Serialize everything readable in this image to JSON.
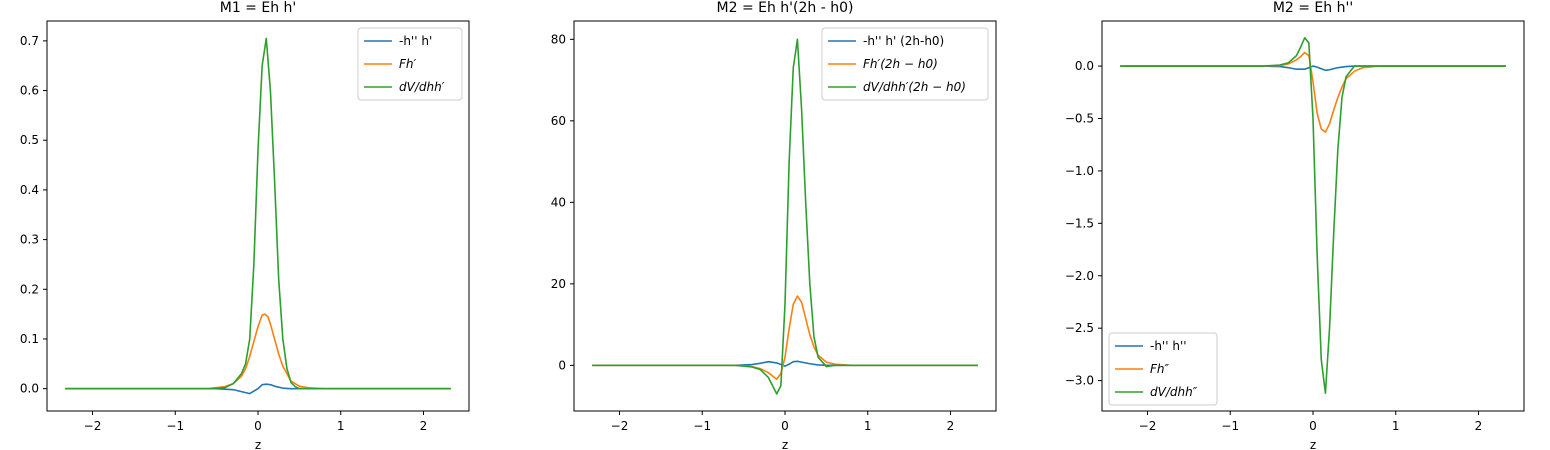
{
  "colors": {
    "blue": "#1f77b4",
    "orange": "#ff7f0e",
    "green": "#2ca02c"
  },
  "chart_data": [
    {
      "type": "line",
      "title": "M1 = Eh h'",
      "xlabel": "z",
      "ylabel": "",
      "xlim": [
        -2.55,
        2.55
      ],
      "ylim": [
        -0.045,
        0.74
      ],
      "xticks": [
        -2,
        -1,
        0,
        1,
        2
      ],
      "yticks": [
        0.0,
        0.1,
        0.2,
        0.3,
        0.4,
        0.5,
        0.6,
        0.7
      ],
      "ytick_labels": [
        "0.0",
        "0.1",
        "0.2",
        "0.3",
        "0.4",
        "0.5",
        "0.6",
        "0.7"
      ],
      "legend_position": "top-right",
      "series": [
        {
          "name": "-h'' h'",
          "color": "blue",
          "x": [
            -2.33,
            -1.0,
            -0.5,
            -0.3,
            -0.2,
            -0.1,
            0.0,
            0.05,
            0.1,
            0.15,
            0.2,
            0.3,
            0.4,
            0.6,
            1.0,
            2.33
          ],
          "y": [
            0,
            0,
            0,
            -0.002,
            -0.006,
            -0.01,
            0.0,
            0.008,
            0.009,
            0.008,
            0.005,
            0.001,
            0.0,
            0,
            0,
            0
          ]
        },
        {
          "name": "Fh′",
          "color": "orange",
          "x": [
            -2.33,
            -0.6,
            -0.4,
            -0.3,
            -0.2,
            -0.15,
            -0.1,
            -0.05,
            0.0,
            0.05,
            0.08,
            0.12,
            0.15,
            0.2,
            0.25,
            0.3,
            0.4,
            0.5,
            0.6,
            0.8,
            1.0,
            2.33
          ],
          "y": [
            0,
            0,
            0.004,
            0.01,
            0.025,
            0.04,
            0.065,
            0.095,
            0.125,
            0.148,
            0.15,
            0.145,
            0.13,
            0.1,
            0.07,
            0.045,
            0.015,
            0.005,
            0.002,
            0,
            0,
            0
          ]
        },
        {
          "name": "dV/dhh′",
          "color": "green",
          "x": [
            -2.33,
            -0.6,
            -0.4,
            -0.3,
            -0.2,
            -0.15,
            -0.1,
            -0.05,
            0.0,
            0.05,
            0.1,
            0.15,
            0.2,
            0.25,
            0.3,
            0.35,
            0.4,
            0.45,
            0.5,
            0.6,
            1.0,
            2.33
          ],
          "y": [
            0,
            0,
            0.002,
            0.01,
            0.03,
            0.05,
            0.1,
            0.25,
            0.48,
            0.65,
            0.705,
            0.6,
            0.42,
            0.22,
            0.1,
            0.04,
            0.012,
            0.004,
            0.0,
            0,
            0,
            0
          ]
        }
      ]
    },
    {
      "type": "line",
      "title": "M2 = Eh h'(2h - h0)",
      "xlabel": "z",
      "ylabel": "",
      "xlim": [
        -2.55,
        2.55
      ],
      "ylim": [
        -11.2,
        84.5
      ],
      "xticks": [
        -2,
        -1,
        0,
        1,
        2
      ],
      "yticks": [
        0,
        20,
        40,
        60,
        80
      ],
      "ytick_labels": [
        "0",
        "20",
        "40",
        "60",
        "80"
      ],
      "legend_position": "top-right",
      "series": [
        {
          "name": "-h'' h' (2h-h0)",
          "color": "blue",
          "x": [
            -2.33,
            -0.6,
            -0.4,
            -0.3,
            -0.2,
            -0.1,
            0.0,
            0.05,
            0.1,
            0.15,
            0.2,
            0.3,
            0.4,
            0.5,
            0.6,
            0.8,
            2.33
          ],
          "y": [
            0,
            0,
            0.2,
            0.5,
            0.9,
            0.6,
            -0.2,
            0.3,
            0.9,
            1.0,
            0.8,
            0.4,
            0.1,
            0.0,
            0,
            0,
            0
          ]
        },
        {
          "name": "Fh′(2h − h0)",
          "color": "orange",
          "x": [
            -2.33,
            -0.6,
            -0.4,
            -0.3,
            -0.2,
            -0.15,
            -0.1,
            -0.05,
            0.0,
            0.05,
            0.1,
            0.15,
            0.2,
            0.25,
            0.3,
            0.35,
            0.4,
            0.5,
            0.6,
            0.8,
            1.0,
            2.33
          ],
          "y": [
            0,
            0,
            -0.3,
            -0.8,
            -1.8,
            -2.6,
            -3.4,
            -2.0,
            2.0,
            9.0,
            15.0,
            17.0,
            15.5,
            11.5,
            7.5,
            4.5,
            2.5,
            0.8,
            0.3,
            0,
            0,
            0
          ]
        },
        {
          "name": "dV/dhh′(2h − h0)",
          "color": "green",
          "x": [
            -2.33,
            -0.6,
            -0.4,
            -0.3,
            -0.2,
            -0.15,
            -0.1,
            -0.05,
            0.0,
            0.05,
            0.1,
            0.15,
            0.2,
            0.25,
            0.3,
            0.35,
            0.4,
            0.5,
            0.6,
            1.0,
            2.33
          ],
          "y": [
            0,
            0,
            -0.4,
            -1.0,
            -3.0,
            -5.0,
            -7.0,
            -5.0,
            15.0,
            50.0,
            73.0,
            80.0,
            63.0,
            40.0,
            20.0,
            7.0,
            2.0,
            -0.3,
            0,
            0,
            0
          ]
        }
      ]
    },
    {
      "type": "line",
      "title": "M2 = Eh h''",
      "xlabel": "z",
      "ylabel": "",
      "xlim": [
        -2.55,
        2.55
      ],
      "ylim": [
        -3.29,
        0.43
      ],
      "xticks": [
        -2,
        -1,
        0,
        1,
        2
      ],
      "yticks": [
        0.0,
        -0.5,
        -1.0,
        -1.5,
        -2.0,
        -2.5,
        -3.0
      ],
      "ytick_labels": [
        "0.0",
        "−0.5",
        "−1.0",
        "−1.5",
        "−2.0",
        "−2.5",
        "−3.0"
      ],
      "legend_position": "lower-left",
      "series": [
        {
          "name": "-h'' h''",
          "color": "blue",
          "x": [
            -2.33,
            -0.6,
            -0.4,
            -0.3,
            -0.2,
            -0.1,
            0.0,
            0.05,
            0.1,
            0.15,
            0.2,
            0.3,
            0.4,
            0.5,
            0.6,
            0.8,
            2.33
          ],
          "y": [
            0,
            0,
            -0.005,
            -0.015,
            -0.03,
            -0.03,
            0.0,
            -0.01,
            -0.025,
            -0.04,
            -0.035,
            -0.015,
            -0.005,
            0.0,
            0,
            0,
            0
          ]
        },
        {
          "name": "Fh″",
          "color": "orange",
          "x": [
            -2.33,
            -0.6,
            -0.4,
            -0.3,
            -0.2,
            -0.15,
            -0.1,
            -0.05,
            0.0,
            0.05,
            0.1,
            0.15,
            0.2,
            0.25,
            0.3,
            0.35,
            0.4,
            0.5,
            0.6,
            0.8,
            1.0,
            2.33
          ],
          "y": [
            0,
            0,
            0.005,
            0.02,
            0.06,
            0.09,
            0.13,
            0.1,
            -0.15,
            -0.45,
            -0.6,
            -0.63,
            -0.55,
            -0.42,
            -0.3,
            -0.2,
            -0.12,
            -0.05,
            -0.015,
            0,
            0,
            0
          ]
        },
        {
          "name": "dV/dhh″",
          "color": "green",
          "x": [
            -2.33,
            -0.6,
            -0.4,
            -0.3,
            -0.2,
            -0.15,
            -0.1,
            -0.05,
            0.0,
            0.05,
            0.1,
            0.15,
            0.2,
            0.25,
            0.3,
            0.35,
            0.4,
            0.5,
            0.6,
            1.0,
            2.33
          ],
          "y": [
            0,
            0,
            0.01,
            0.03,
            0.1,
            0.18,
            0.27,
            0.22,
            -0.5,
            -1.8,
            -2.8,
            -3.12,
            -2.5,
            -1.6,
            -0.8,
            -0.3,
            -0.1,
            0.0,
            0,
            0,
            0
          ]
        }
      ]
    }
  ]
}
